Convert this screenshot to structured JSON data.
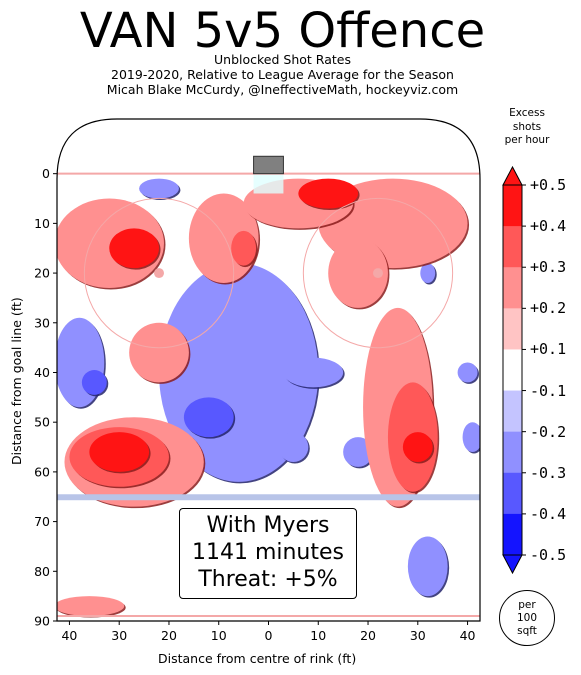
{
  "chart_data": {
    "type": "heatmap",
    "title": "VAN 5v5 Offence",
    "subtitle_lines": [
      "Unblocked Shot Rates",
      "2019-2020, Relative to League Average for the Season",
      "Micah Blake McCurdy, @IneffectiveMath, hockeyviz.com"
    ],
    "xlabel": "Distance from centre of rink (ft)",
    "ylabel": "Distance from goal line (ft)",
    "xlim": [
      -42.5,
      42.5
    ],
    "ylim": [
      90,
      -11
    ],
    "x_ticks": [
      -40,
      -30,
      -20,
      -10,
      0,
      10,
      20,
      30,
      40
    ],
    "x_tick_labels": [
      "40",
      "30",
      "20",
      "10",
      "0",
      "10",
      "20",
      "30",
      "40"
    ],
    "y_ticks": [
      0,
      10,
      20,
      30,
      40,
      50,
      60,
      70,
      80,
      90
    ],
    "y_tick_labels": [
      "0",
      "10",
      "20",
      "30",
      "40",
      "50",
      "60",
      "70",
      "80",
      "90"
    ],
    "colorbar": {
      "title_lines": [
        "Excess",
        "shots",
        "per hour"
      ],
      "ticks": [
        "+0.5",
        "+0.4",
        "+0.3",
        "+0.2",
        "+0.1",
        "-0.1",
        "-0.2",
        "-0.3",
        "-0.4",
        "-0.5"
      ],
      "colors": [
        "#ff1414",
        "#ff5858",
        "#ff9090",
        "#ffc4c4",
        "#ffffff",
        "#c4c4ff",
        "#9090ff",
        "#5858ff",
        "#1414ff"
      ]
    },
    "unit_lines": [
      "per",
      "100",
      "sqft"
    ],
    "annotation_lines": [
      "With Myers",
      "1141 minutes",
      "Threat: +5%"
    ],
    "regions": [
      {
        "x": -32,
        "y": 14,
        "rx": 11,
        "ry": 9,
        "level": 0.25
      },
      {
        "x": -27,
        "y": 15,
        "rx": 5,
        "ry": 4,
        "level": 0.4
      },
      {
        "x": -9,
        "y": 13,
        "rx": 7,
        "ry": 9,
        "level": 0.25
      },
      {
        "x": -5,
        "y": 15,
        "rx": 2.5,
        "ry": 3.5,
        "level": 0.35
      },
      {
        "x": 6,
        "y": 6,
        "rx": 11,
        "ry": 5,
        "level": 0.25
      },
      {
        "x": 12,
        "y": 4,
        "rx": 6,
        "ry": 3,
        "level": 0.45
      },
      {
        "x": 25,
        "y": 10,
        "rx": 15,
        "ry": 9,
        "level": 0.2
      },
      {
        "x": 18,
        "y": 20,
        "rx": 6,
        "ry": 7,
        "level": 0.25
      },
      {
        "x": -22,
        "y": 36,
        "rx": 6,
        "ry": 6,
        "level": 0.25
      },
      {
        "x": 26,
        "y": 47,
        "rx": 7,
        "ry": 20,
        "level": 0.2
      },
      {
        "x": 29,
        "y": 53,
        "rx": 5,
        "ry": 11,
        "level": 0.3
      },
      {
        "x": 30,
        "y": 55,
        "rx": 3,
        "ry": 3,
        "level": 0.5
      },
      {
        "x": -27,
        "y": 58,
        "rx": 14,
        "ry": 9,
        "level": 0.2
      },
      {
        "x": -30,
        "y": 57,
        "rx": 10,
        "ry": 6,
        "level": 0.35
      },
      {
        "x": -30,
        "y": 56,
        "rx": 6,
        "ry": 4,
        "level": 0.5
      },
      {
        "x": -36,
        "y": 87,
        "rx": 7,
        "ry": 2,
        "level": 0.2
      },
      {
        "x": -22,
        "y": 3,
        "rx": 4,
        "ry": 2,
        "level": -0.2
      },
      {
        "x": -6,
        "y": 40,
        "rx": 16,
        "ry": 22,
        "level": -0.2
      },
      {
        "x": -12,
        "y": 49,
        "rx": 5,
        "ry": 4,
        "level": -0.35
      },
      {
        "x": -38,
        "y": 38,
        "rx": 5,
        "ry": 9,
        "level": -0.2
      },
      {
        "x": -35,
        "y": 42,
        "rx": 2.5,
        "ry": 2.5,
        "level": -0.35
      },
      {
        "x": 9,
        "y": 40,
        "rx": 6,
        "ry": 3,
        "level": -0.2
      },
      {
        "x": 32,
        "y": 20,
        "rx": 1.5,
        "ry": 2,
        "level": -0.2
      },
      {
        "x": 5,
        "y": 55,
        "rx": 3,
        "ry": 3,
        "level": -0.2
      },
      {
        "x": 18,
        "y": 56,
        "rx": 3,
        "ry": 3,
        "level": -0.2
      },
      {
        "x": 40,
        "y": 40,
        "rx": 2,
        "ry": 2,
        "level": -0.2
      },
      {
        "x": 41,
        "y": 53,
        "rx": 2,
        "ry": 3,
        "level": -0.2
      },
      {
        "x": 32,
        "y": 79,
        "rx": 4,
        "ry": 6,
        "level": -0.2
      }
    ]
  }
}
